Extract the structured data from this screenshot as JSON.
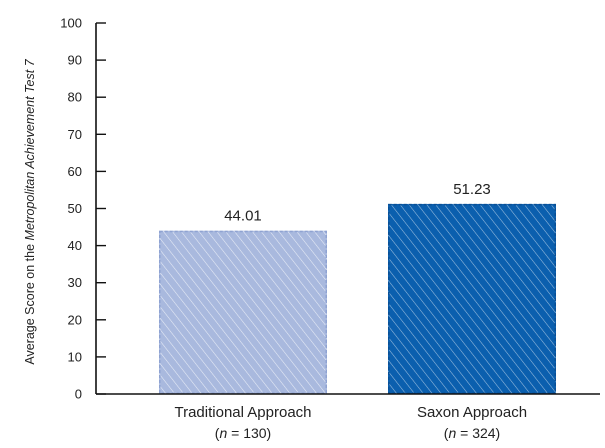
{
  "chart_data": {
    "type": "bar",
    "categories": [
      "Traditional Approach",
      "Saxon Approach"
    ],
    "sample_sizes": [
      "130",
      "324"
    ],
    "values": [
      44.01,
      51.23
    ],
    "value_labels": [
      "44.01",
      "51.23"
    ],
    "ylabel_prefix": "Average Score on the ",
    "ylabel_italic": "Metropolitan Achievement Test 7",
    "ylim": [
      0,
      100
    ],
    "yticks": [
      0,
      10,
      20,
      30,
      40,
      50,
      60,
      70,
      80,
      90,
      100
    ],
    "n_prefix": "(",
    "n_var": "n",
    "n_equals": " = ",
    "n_suffix": ")",
    "grid": false,
    "colors": {
      "Traditional Approach": "#a9b9de",
      "Saxon Approach": "#0b5fae",
      "axis": "#111111"
    }
  }
}
